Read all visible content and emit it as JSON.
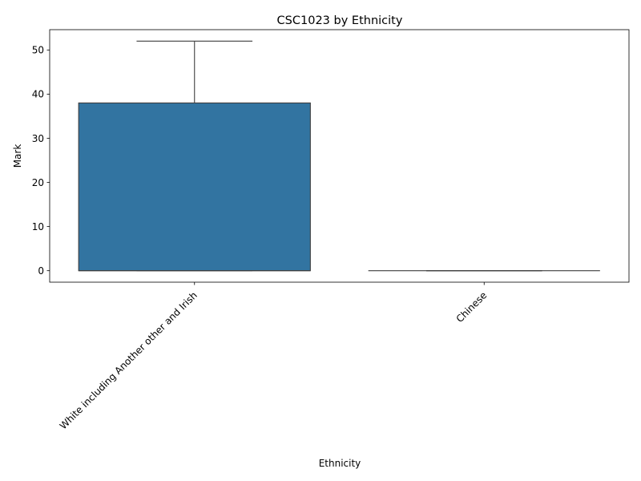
{
  "chart_data": {
    "type": "box",
    "title": "CSC1023 by Ethnicity",
    "xlabel": "Ethnicity",
    "ylabel": "Mark",
    "ylim": [
      -2.6,
      54.6
    ],
    "yticks": [
      0,
      10,
      20,
      30,
      40,
      50
    ],
    "categories": [
      "White including Another other and Irish",
      "Chinese"
    ],
    "boxes": [
      {
        "category": "White including Another other and Irish",
        "min": 0,
        "q1": 0,
        "median": 0,
        "q3": 38,
        "max": 52
      },
      {
        "category": "Chinese",
        "min": 0,
        "q1": 0,
        "median": 0,
        "q3": 0,
        "max": 0
      }
    ],
    "box_color": "#3274a1",
    "line_color": "#3f3f3f",
    "grid": false,
    "legend": "none"
  }
}
